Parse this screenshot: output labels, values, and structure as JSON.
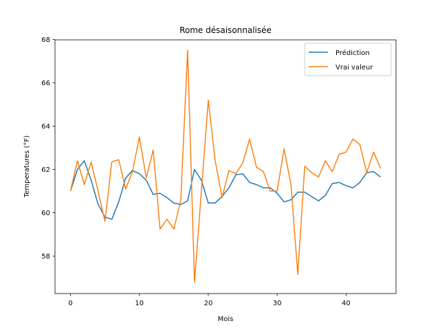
{
  "chart_data": {
    "type": "line",
    "title": "Rome désaisonnalisée",
    "xlabel": "Mois",
    "ylabel": "Temperatures (°F)",
    "xlim": [
      -2.25,
      47.25
    ],
    "ylim": [
      56.27,
      67.98
    ],
    "xticks": [
      0,
      10,
      20,
      30,
      40
    ],
    "yticks": [
      58,
      60,
      62,
      64,
      66,
      68
    ],
    "grid": false,
    "legend_position": "top-right",
    "x": [
      0,
      1,
      2,
      3,
      4,
      5,
      6,
      7,
      8,
      9,
      10,
      11,
      12,
      13,
      14,
      15,
      16,
      17,
      18,
      19,
      20,
      21,
      22,
      23,
      24,
      25,
      26,
      27,
      28,
      29,
      30,
      31,
      32,
      33,
      34,
      35,
      36,
      37,
      38,
      39,
      40,
      41,
      42,
      43,
      44,
      45
    ],
    "series": [
      {
        "name": "Prédiction",
        "color": "#1f77b4",
        "values": [
          61.0,
          62.0,
          62.4,
          61.5,
          60.4,
          59.8,
          59.7,
          60.5,
          61.6,
          61.95,
          61.8,
          61.5,
          60.85,
          60.9,
          60.7,
          60.45,
          60.38,
          60.55,
          62.0,
          61.5,
          60.45,
          60.45,
          60.75,
          61.15,
          61.75,
          61.8,
          61.4,
          61.3,
          61.15,
          61.15,
          60.9,
          60.5,
          60.6,
          60.95,
          60.95,
          60.75,
          60.55,
          60.8,
          61.35,
          61.4,
          61.25,
          61.15,
          61.4,
          61.85,
          61.9,
          61.65
        ]
      },
      {
        "name": "Vrai valeur",
        "color": "#ff7f0e",
        "values": [
          61.0,
          62.4,
          61.3,
          62.35,
          61.0,
          59.6,
          62.35,
          62.45,
          61.1,
          61.9,
          63.5,
          61.6,
          62.9,
          59.25,
          59.7,
          59.25,
          60.55,
          67.5,
          56.8,
          61.0,
          65.2,
          62.4,
          60.7,
          61.95,
          61.8,
          62.3,
          63.4,
          62.1,
          61.9,
          61.0,
          61.0,
          62.95,
          61.3,
          57.15,
          62.15,
          61.85,
          61.65,
          62.4,
          61.9,
          62.7,
          62.8,
          63.4,
          63.15,
          61.85,
          62.8,
          62.05
        ]
      }
    ]
  }
}
